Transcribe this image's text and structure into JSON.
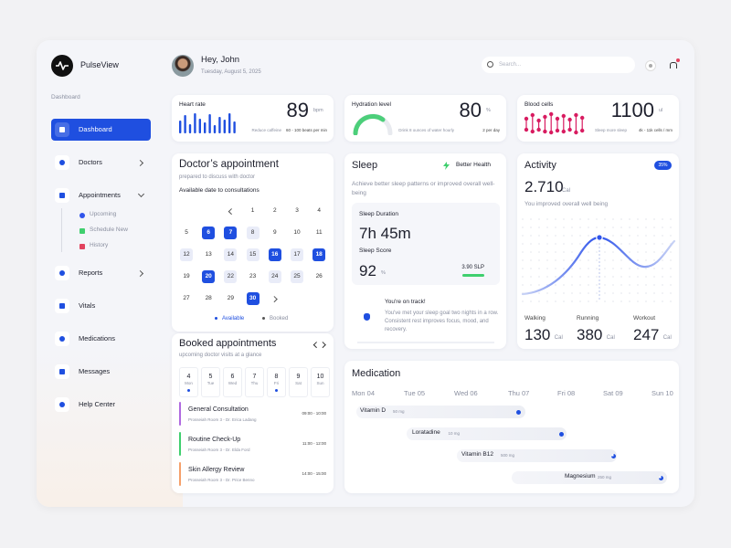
{
  "app": {
    "name": "PulseView"
  },
  "sidebar": {
    "section": "Dashboard",
    "nav": [
      {
        "label": "Dashboard",
        "active": true
      },
      {
        "label": "Doctors",
        "active": false
      },
      {
        "label": "Appointments",
        "active": false,
        "children": [
          "Upcoming",
          "Schedule New",
          "History"
        ]
      },
      {
        "label": "Reports",
        "active": false
      },
      {
        "label": "Vitals",
        "active": false
      },
      {
        "label": "Medications",
        "active": false
      },
      {
        "label": "Messages",
        "active": false
      },
      {
        "label": "Help Center",
        "active": false
      }
    ]
  },
  "header": {
    "greeting": "Hey, John",
    "date": "Tuesday, August 5, 2025",
    "search_placeholder": "Search..."
  },
  "vitals": [
    {
      "title": "Heart rate",
      "value": 89,
      "unit": "bpm",
      "note": "Reduce caffeine",
      "range": "60 - 100 beats per min"
    },
    {
      "title": "Hydration level",
      "value": 80,
      "unit": "%",
      "note": "Drink 8 ounces of water hourly",
      "range": "2 per day"
    },
    {
      "title": "Blood cells",
      "value": 1100,
      "unit": "ul",
      "note": "Sleep more sleep",
      "range": "4k - 11k cells / mm"
    }
  ],
  "doctor_appointment": {
    "title": "Doctor’s appointment",
    "subtitle": "prepared to discuss with doctor",
    "caption": "Available date to consultations",
    "weeks": [
      [
        {
          "day": 1,
          "state": "plain"
        },
        {
          "day": 2,
          "state": "plain"
        },
        {
          "day": 3,
          "state": "plain"
        },
        {
          "day": 4,
          "state": "plain"
        }
      ],
      [
        {
          "day": 5,
          "state": "plain"
        },
        {
          "day": 6,
          "state": "booked"
        },
        {
          "day": 7,
          "state": "booked"
        },
        {
          "day": 8,
          "state": "available"
        },
        {
          "day": 9,
          "state": "plain"
        },
        {
          "day": 10,
          "state": "plain"
        },
        {
          "day": 11,
          "state": "plain"
        }
      ],
      [
        {
          "day": 12,
          "state": "available"
        },
        {
          "day": 13,
          "state": "plain"
        },
        {
          "day": 14,
          "state": "available"
        },
        {
          "day": 15,
          "state": "available"
        },
        {
          "day": 16,
          "state": "booked"
        },
        {
          "day": 17,
          "state": "available"
        },
        {
          "day": 18,
          "state": "booked"
        }
      ],
      [
        {
          "day": 19,
          "state": "plain"
        },
        {
          "day": 20,
          "state": "booked"
        },
        {
          "day": 22,
          "state": "available"
        },
        {
          "day": 23,
          "state": "plain"
        },
        {
          "day": 24,
          "state": "available"
        },
        {
          "day": 25,
          "state": "available"
        },
        {
          "day": 26,
          "state": "plain"
        }
      ],
      [
        {
          "day": 27,
          "state": "plain"
        },
        {
          "day": 28,
          "state": "plain"
        },
        {
          "day": 29,
          "state": "plain"
        },
        {
          "day": 30,
          "state": "booked"
        }
      ]
    ],
    "legend": {
      "available": "Available",
      "booked": "Booked"
    }
  },
  "booked": {
    "title": "Booked appointments",
    "subtitle": "upcoming doctor visits at a glance",
    "days": [
      {
        "day": 4,
        "weekday": "Mon",
        "visit": true
      },
      {
        "day": 5,
        "weekday": "Tue",
        "visit": false
      },
      {
        "day": 6,
        "weekday": "Wed",
        "visit": false
      },
      {
        "day": 7,
        "weekday": "Thu",
        "visit": false
      },
      {
        "day": 8,
        "weekday": "Fri",
        "visit": true
      },
      {
        "day": 9,
        "weekday": "Sat",
        "visit": false
      },
      {
        "day": 10,
        "weekday": "Sun",
        "visit": false
      }
    ],
    "visits": [
      {
        "title": "General Consultation",
        "location": "Prosseiah Room 3 - Dr. Erica Ladang",
        "time": "09:00 - 10:00",
        "color": "#b06ae0"
      },
      {
        "title": "Routine Check-Up",
        "location": "Prosseiah Room 3 - Dr. Elda Ford",
        "time": "11:00 - 12:00",
        "color": "#3fcf6e"
      },
      {
        "title": "Skin Allergy Review",
        "location": "Prosseiah Room 3 - Dr. Price Benno",
        "time": "14:00 - 15:00",
        "color": "#f5a06a"
      }
    ]
  },
  "sleep": {
    "title": "Sleep",
    "badge": "Better Health",
    "description": "Achieve better sleep patterns or improved overall well-being",
    "duration_label": "Sleep Duration",
    "duration": "7h 45m",
    "score_label": "Sleep Score",
    "score": 92,
    "score_unit": "%",
    "slp": "3.90 SLP",
    "tip_title": "You're on track!",
    "tip_text": "You've met your sleep goal two nights in a row. Consistent rest improves focus, mood, and recovery."
  },
  "activity": {
    "title": "Activity",
    "badge": "35%",
    "total": "2.710",
    "total_unit": "Cal",
    "caption": "You improved overall well being",
    "stats": [
      {
        "label": "Walking",
        "value": 130,
        "unit": "Cal"
      },
      {
        "label": "Running",
        "value": 380,
        "unit": "Cal"
      },
      {
        "label": "Workout",
        "value": 247,
        "unit": "Cal"
      }
    ]
  },
  "medication": {
    "title": "Medication",
    "days": [
      "Mon 04",
      "Tue 05",
      "Wed 06",
      "Thu 07",
      "Fri 08",
      "Sat 09",
      "Sun 10"
    ],
    "items": [
      {
        "name": "Vitamin D",
        "dose": "50 mg"
      },
      {
        "name": "Loratadine",
        "dose": "10 mg"
      },
      {
        "name": "Vitamin B12",
        "dose": "500 mg"
      },
      {
        "name": "Magnesium",
        "dose": "250 mg"
      }
    ]
  }
}
